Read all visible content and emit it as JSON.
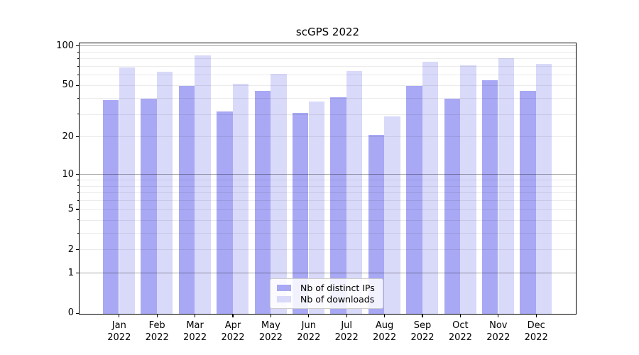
{
  "title": "scGPS 2022",
  "chart_data": {
    "type": "bar",
    "title": "scGPS 2022",
    "categories": [
      "Jan",
      "Feb",
      "Mar",
      "Apr",
      "May",
      "Jun",
      "Jul",
      "Aug",
      "Sep",
      "Oct",
      "Nov",
      "Dec"
    ],
    "year_label": "2022",
    "series": [
      {
        "name": "Nb of distinct IPs",
        "color": "#a8a8f4",
        "values": [
          39,
          40,
          50,
          32,
          46,
          31,
          41,
          21,
          50,
          40,
          55,
          46
        ]
      },
      {
        "name": "Nb of downloads",
        "color": "#d9d9fa",
        "values": [
          69,
          64,
          85,
          52,
          62,
          38,
          65,
          29,
          76,
          72,
          81,
          74
        ]
      }
    ],
    "y_axis": {
      "scale": "log(1+x)",
      "tick_values": [
        0,
        1,
        2,
        5,
        10,
        20,
        50,
        100
      ],
      "tick_labels": [
        "0",
        "1",
        "2",
        "5",
        "10",
        "20",
        "50",
        "100"
      ],
      "major_grid_values": [
        1,
        10,
        100
      ],
      "minor_grid_values": [
        2,
        3,
        4,
        5,
        6,
        7,
        8,
        9,
        20,
        30,
        40,
        50,
        60,
        70,
        80,
        90
      ],
      "ylim": [
        0,
        105
      ]
    },
    "legend_position": "lower center",
    "grid": "on"
  }
}
